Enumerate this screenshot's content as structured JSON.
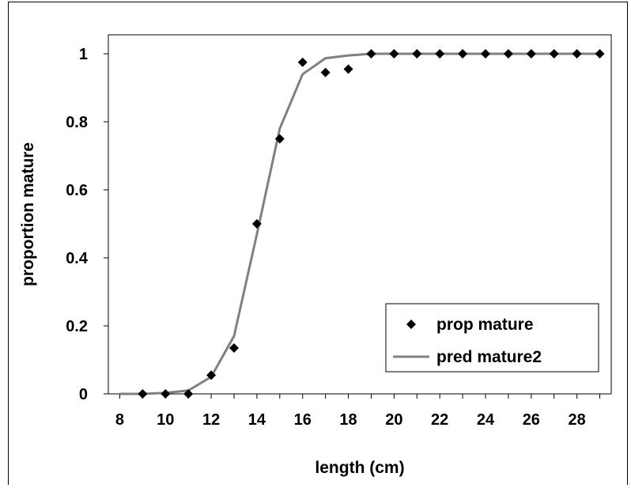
{
  "chart_data": {
    "type": "scatter",
    "title": "",
    "xlabel": "length (cm)",
    "ylabel": "proportion mature",
    "xlim": [
      7.5,
      29.5
    ],
    "ylim": [
      0,
      1.05
    ],
    "x_ticks": [
      8,
      10,
      12,
      14,
      16,
      18,
      20,
      22,
      24,
      26,
      28
    ],
    "y_ticks": [
      0,
      0.2,
      0.4,
      0.6,
      0.8,
      1
    ],
    "x_tick_labels": [
      "8",
      "10",
      "12",
      "14",
      "16",
      "18",
      "20",
      "22",
      "24",
      "26",
      "28"
    ],
    "y_tick_labels": [
      "0",
      "0.2",
      "0.4",
      "0.6",
      "0.8",
      "1"
    ],
    "grid": false,
    "legend_position": "bottom-right",
    "series": [
      {
        "name": "prop mature",
        "kind": "scatter",
        "marker": "diamond",
        "color": "#000000",
        "x": [
          9,
          10,
          11,
          12,
          13,
          14,
          15,
          16,
          17,
          18,
          19,
          20,
          21,
          22,
          23,
          24,
          25,
          26,
          27,
          28,
          29
        ],
        "y": [
          0,
          0,
          0,
          0.055,
          0.135,
          0.5,
          0.75,
          0.975,
          0.945,
          0.955,
          1,
          1,
          1,
          1,
          1,
          1,
          1,
          1,
          1,
          1,
          1
        ]
      },
      {
        "name": "pred mature2",
        "kind": "line",
        "color": "#808080",
        "x": [
          8,
          9,
          10,
          11,
          12,
          13,
          14,
          15,
          16,
          17,
          18,
          19,
          20,
          21,
          22,
          23,
          24,
          25,
          26,
          27,
          28,
          29
        ],
        "y": [
          0,
          0,
          0.003,
          0.01,
          0.05,
          0.17,
          0.47,
          0.78,
          0.94,
          0.987,
          0.995,
          1,
          1,
          1,
          1,
          1,
          1,
          1,
          1,
          1,
          1,
          1
        ]
      }
    ]
  }
}
